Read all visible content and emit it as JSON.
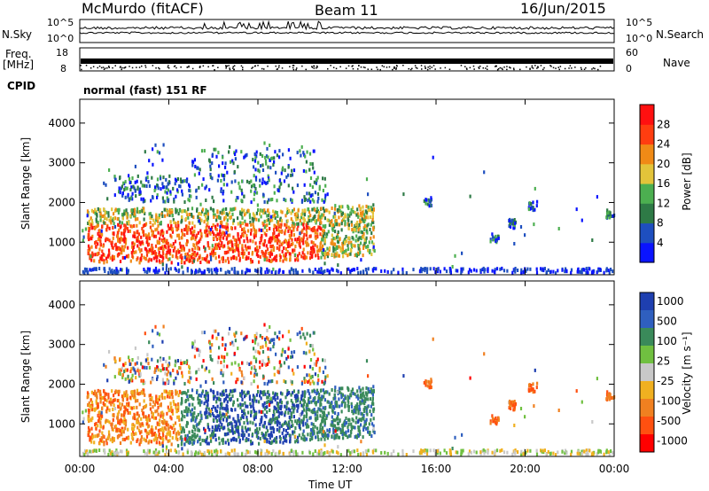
{
  "header": {
    "station": "McMurdo (fitACF)",
    "beam": "Beam 11",
    "date": "16/Jun/2015"
  },
  "status_panel": {
    "nsky_label": "N.Sky",
    "nsearch_label": "N.Search",
    "freq_label": "Freq.",
    "freq_unit": "[MHz]",
    "nave_label": "Nave",
    "cpid_label": "CPID",
    "noise_ticks_left": [
      "10^5",
      "10^0"
    ],
    "noise_ticks_right": [
      "10^5",
      "10^0"
    ],
    "freq_ticks_left": [
      "18",
      "8"
    ],
    "freq_ticks_right": [
      "60",
      "0"
    ],
    "cpid_text": "normal (fast) 151 RF"
  },
  "chart_data": [
    {
      "type": "heatmap",
      "panel": "power",
      "xlabel": "",
      "ylabel": "Slant Range [km]",
      "xlim": [
        0,
        24
      ],
      "ylim": [
        180,
        4600
      ],
      "yticks": [
        "1000",
        "2000",
        "3000",
        "4000"
      ],
      "colorbar": {
        "label": "Power [dB]",
        "ticks": [
          "4",
          "8",
          "12",
          "16",
          "20",
          "24",
          "28"
        ],
        "colors": [
          "#0a14ff",
          "#1e4fbf",
          "#2e7a46",
          "#4caf50",
          "#e3c43a",
          "#f08a16",
          "#ff3d10",
          "#ff1010"
        ]
      }
    },
    {
      "type": "heatmap",
      "panel": "velocity",
      "xlabel": "Time UT",
      "ylabel": "Slant Range [km]",
      "xlim": [
        0,
        24
      ],
      "ylim": [
        180,
        4600
      ],
      "xticks": [
        "00:00",
        "04:00",
        "08:00",
        "12:00",
        "16:00",
        "20:00",
        "00:00"
      ],
      "yticks": [
        "1000",
        "2000",
        "3000",
        "4000"
      ],
      "colorbar": {
        "label": "Velocity [m s⁻¹]",
        "ticks": [
          "1000",
          "500",
          "100",
          "25",
          "-25",
          "-100",
          "-500",
          "-1000"
        ],
        "colors": [
          "#1e3fb0",
          "#2f5fbf",
          "#3a8a5a",
          "#70c040",
          "#c8c8c8",
          "#f0b020",
          "#f08020",
          "#ff5010",
          "#ff0000"
        ]
      }
    }
  ]
}
